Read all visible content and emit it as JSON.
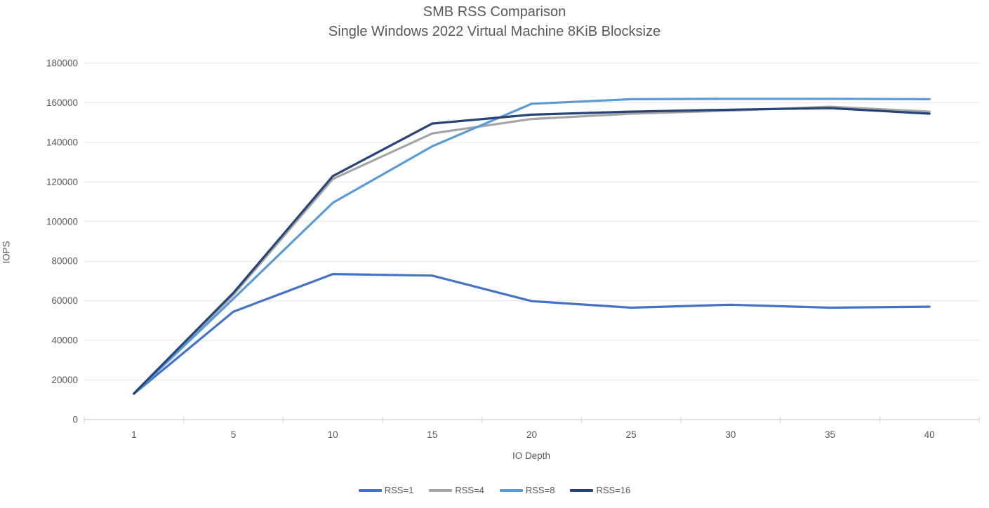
{
  "chart_data": {
    "type": "line",
    "title": "SMB RSS Comparison",
    "subtitle": "Single Windows 2022 Virtual Machine 8KiB Blocksize",
    "xlabel": "IO Depth",
    "ylabel": "IOPS",
    "categories": [
      1,
      5,
      10,
      15,
      20,
      25,
      30,
      35,
      40
    ],
    "ylim": [
      0,
      180000
    ],
    "ytick_step": 20000,
    "grid": true,
    "legend_position": "bottom",
    "series": [
      {
        "name": "RSS=1",
        "color": "#4472C4",
        "values": [
          13000,
          54500,
          73500,
          72700,
          59800,
          56500,
          58000,
          56500,
          57000
        ]
      },
      {
        "name": "RSS=4",
        "color": "#A5A5A5",
        "values": [
          13000,
          63000,
          121500,
          144500,
          151800,
          154500,
          156000,
          158000,
          155500
        ]
      },
      {
        "name": "RSS=8",
        "color": "#5B9BD5",
        "values": [
          13000,
          61000,
          109500,
          138000,
          159500,
          161800,
          162000,
          162000,
          161800
        ]
      },
      {
        "name": "RSS=16",
        "color": "#264478",
        "values": [
          13200,
          64000,
          123000,
          149500,
          154000,
          155500,
          156500,
          157300,
          154500
        ]
      }
    ]
  },
  "colors": {
    "background": "#FFFFFF",
    "text": "#595959",
    "gridline": "#E4E4E4",
    "axis": "#CFCFCF"
  }
}
